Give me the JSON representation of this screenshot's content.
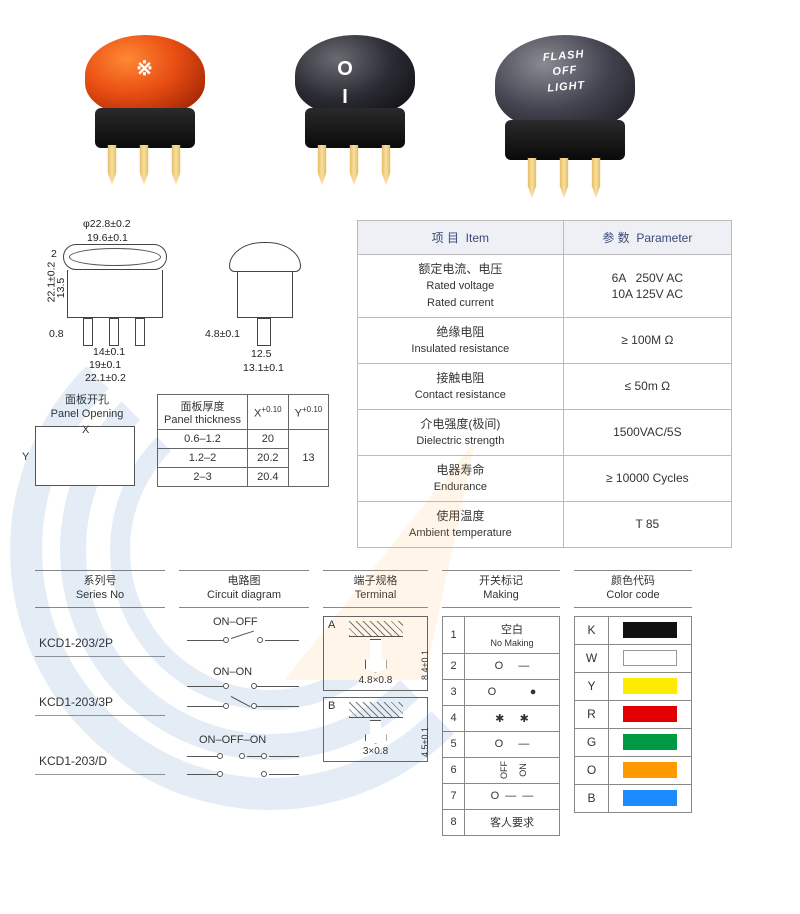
{
  "products": [
    {
      "cap_class": "orange",
      "text": "※",
      "text_class": "sm"
    },
    {
      "cap_class": "black",
      "text": "O        I",
      "text_class": "sm"
    },
    {
      "cap_class": "gray",
      "text": "FLASH\nOFF\nLIGHT",
      "text_class": ""
    }
  ],
  "drawing_dims": {
    "diameter": "φ22.8±0.2",
    "top_inner": "19.6±0.1",
    "side_gap": "2",
    "height": "22.1±0.2",
    "inner_h": "13.5",
    "foot": "0.8",
    "pin_gap": "14±0.1",
    "pin_span": "19±0.1",
    "bottom_w": "22.1±0.2",
    "side_top": "4.8±0.1",
    "side_mid": "12.5",
    "side_bot": "13.1±0.1"
  },
  "panel_opening": {
    "title_cn": "面板开孔",
    "title_en": "Panel Opening",
    "x": "X",
    "y": "Y"
  },
  "thickness_table": {
    "header_cn": "面板厚度",
    "header_en": "Panel thickness",
    "xh": "X",
    "xh_sup": "+0.10",
    "xh_sub": "0",
    "yh": "Y",
    "yh_sup": "+0.10",
    "yh_sub": "0",
    "rows": [
      {
        "t": "0.6–1.2",
        "x": "20"
      },
      {
        "t": "1.2–2",
        "x": "20.2"
      },
      {
        "t": "2–3",
        "x": "20.4"
      }
    ],
    "y_merged": "13"
  },
  "spec_headers": {
    "item_cn": "项 目",
    "item_en": "Item",
    "param_cn": "参 数",
    "param_en": "Parameter"
  },
  "spec_rows": [
    {
      "cn": "额定电流、电压",
      "en": "Rated voltage\nRated current",
      "val": "6A   250V AC\n10A 125V AC"
    },
    {
      "cn": "绝缘电阻",
      "en": "Insulated resistance",
      "val": "≥ 100M Ω"
    },
    {
      "cn": "接触电阻",
      "en": "Contact resistance",
      "val": "≤ 50m Ω"
    },
    {
      "cn": "介电强度(极间)",
      "en": "Dielectric strength",
      "val": "1500VAC/5S"
    },
    {
      "cn": "电器寿命",
      "en": "Endurance",
      "val": "≥ 10000 Cycles"
    },
    {
      "cn": "使用温度",
      "en": "Ambient temperature",
      "val": "T 85"
    }
  ],
  "column_heads": {
    "series": {
      "cn": "系列号",
      "en": "Series No"
    },
    "circuit": {
      "cn": "电路图",
      "en": "Circuit diagram"
    },
    "terminal": {
      "cn": "端子规格",
      "en": "Terminal"
    },
    "making": {
      "cn": "开关标记",
      "en": "Making"
    },
    "color": {
      "cn": "颜色代码",
      "en": "Color code"
    }
  },
  "series": [
    {
      "name": "KCD1-203/2P",
      "circuit": "ON–OFF"
    },
    {
      "name": "KCD1-203/3P",
      "circuit": "ON–ON"
    },
    {
      "name": "KCD1-203/D",
      "circuit": "ON–OFF–ON"
    }
  ],
  "terminals": [
    {
      "letter": "A",
      "dim": "4.8×0.8",
      "side": "8.4±0.1",
      "spade": "lg"
    },
    {
      "letter": "B",
      "dim": "3×0.8",
      "side": "4.5±0.1",
      "spade": "sm"
    }
  ],
  "making": [
    {
      "n": "1",
      "txt_cn": "空白",
      "txt_en": "No Making"
    },
    {
      "n": "2",
      "sym": "O     —"
    },
    {
      "n": "3",
      "sym": "O           ●"
    },
    {
      "n": "4",
      "sym": "✱     ✱"
    },
    {
      "n": "5",
      "sym": "O     —"
    },
    {
      "n": "6",
      "sym": "OFF | ON",
      "vert": true
    },
    {
      "n": "7",
      "sym": "O  —  —"
    },
    {
      "n": "8",
      "txt_cn": "客人要求"
    }
  ],
  "colors": [
    {
      "k": "K",
      "hex": "#111111"
    },
    {
      "k": "W",
      "hex": "#ffffff",
      "border": "#999"
    },
    {
      "k": "Y",
      "hex": "#ffeb00"
    },
    {
      "k": "R",
      "hex": "#e20000"
    },
    {
      "k": "G",
      "hex": "#009944"
    },
    {
      "k": "O",
      "hex": "#ff9900"
    },
    {
      "k": "B",
      "hex": "#1a8cff"
    }
  ]
}
